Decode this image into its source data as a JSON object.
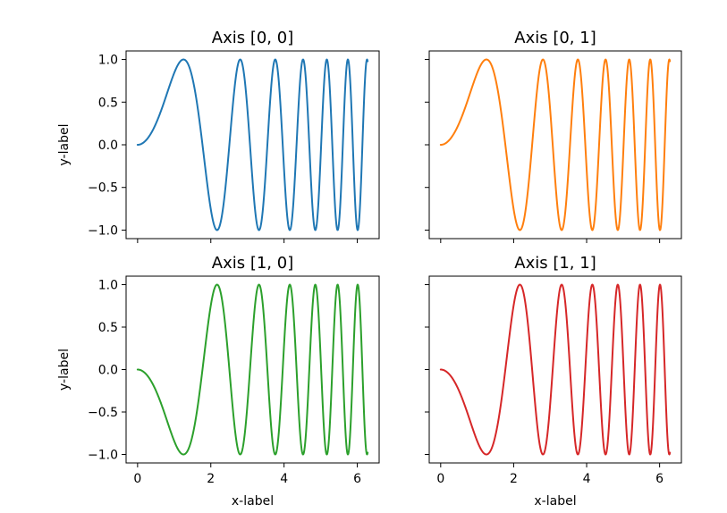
{
  "figure": {
    "shared_x_ticks": [
      0,
      2,
      4,
      6
    ],
    "shared_y_ticks": [
      -1.0,
      -0.5,
      0.0,
      0.5,
      1.0
    ],
    "y_tick_labels": [
      "−1.0",
      "−0.5",
      "0.0",
      "0.5",
      "1.0"
    ],
    "x_tick_labels": [
      "0",
      "2",
      "4",
      "6"
    ]
  },
  "chart_data": [
    {
      "type": "line",
      "title": "Axis [0, 0]",
      "xlabel": "",
      "ylabel": "y-label",
      "xlim": [
        -0.314,
        6.597
      ],
      "ylim": [
        -1.1,
        1.1
      ],
      "function": "sin(x^2)",
      "x_range": [
        0,
        6.283
      ],
      "series": [
        {
          "name": "sin(x^2)",
          "color": "#1f77b4"
        }
      ]
    },
    {
      "type": "line",
      "title": "Axis [0, 1]",
      "xlabel": "",
      "ylabel": "",
      "xlim": [
        -0.314,
        6.597
      ],
      "ylim": [
        -1.1,
        1.1
      ],
      "function": "sin(x^2)",
      "x_range": [
        0,
        6.283
      ],
      "series": [
        {
          "name": "sin(x^2)",
          "color": "#ff7f0e"
        }
      ]
    },
    {
      "type": "line",
      "title": "Axis [1, 0]",
      "xlabel": "x-label",
      "ylabel": "y-label",
      "xlim": [
        -0.314,
        6.597
      ],
      "ylim": [
        -1.1,
        1.1
      ],
      "function": "-sin(x^2)",
      "x_range": [
        0,
        6.283
      ],
      "series": [
        {
          "name": "-sin(x^2)",
          "color": "#2ca02c"
        }
      ]
    },
    {
      "type": "line",
      "title": "Axis [1, 1]",
      "xlabel": "x-label",
      "ylabel": "",
      "xlim": [
        -0.314,
        6.597
      ],
      "ylim": [
        -1.1,
        1.1
      ],
      "function": "-sin(x^2)",
      "x_range": [
        0,
        6.283
      ],
      "series": [
        {
          "name": "-sin(x^2)",
          "color": "#d62728"
        }
      ]
    }
  ]
}
